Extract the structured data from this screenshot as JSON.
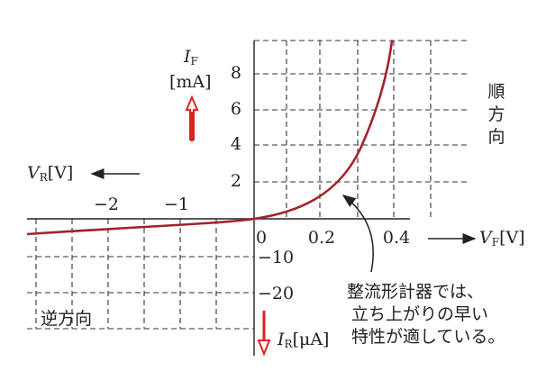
{
  "forward_current_label": {
    "symbol": "I",
    "subscript": "F",
    "unit": "[mA]"
  },
  "reverse_voltage_label": {
    "symbol": "V",
    "subscript": "R",
    "unit": "[V]"
  },
  "forward_voltage_label": {
    "symbol": "V",
    "subscript": "F",
    "unit": "[V]"
  },
  "reverse_current_label": {
    "symbol": "I",
    "subscript": "R",
    "unit": "[μA]"
  },
  "forward_current_ticks": [
    "8",
    "6",
    "4",
    "2"
  ],
  "reverse_voltage_ticks": [
    "−2",
    "−1"
  ],
  "forward_voltage_ticks": [
    "0",
    "0.2",
    "0.4"
  ],
  "reverse_current_ticks": [
    "−10",
    "−20"
  ],
  "forward_direction": [
    "順",
    "方",
    "向"
  ],
  "reverse_direction": "逆方向",
  "annotation": [
    "整流形計器では、",
    "立ち上がりの早い",
    "特性が適している。"
  ]
}
